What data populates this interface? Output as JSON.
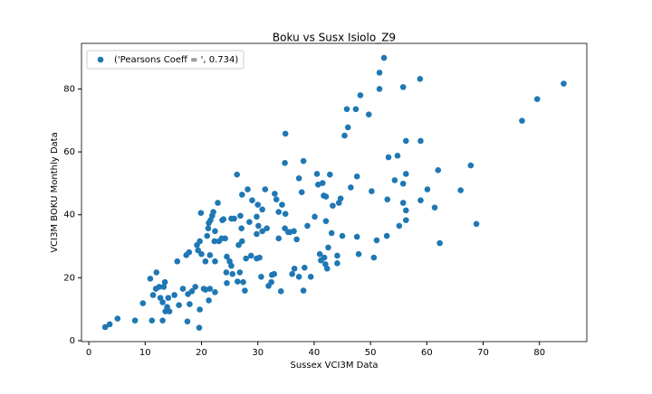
{
  "chart_data": {
    "type": "scatter",
    "title": "Boku vs Susx Isiolo_Z9",
    "x_label": "Sussex VCI3M Data",
    "y_label": "VCI3M BOKU Monthly Data",
    "xlim": [
      -1.3,
      88.4
    ],
    "ylim": [
      -0.3,
      94.5
    ],
    "xticks": [
      0,
      10,
      20,
      30,
      40,
      50,
      60,
      70,
      80
    ],
    "yticks": [
      0,
      20,
      40,
      60,
      80
    ],
    "legend": "upper left",
    "x": [
      2.9,
      3.7,
      5.1,
      8.2,
      9.6,
      10.9,
      11.2,
      11.4,
      12.0,
      11.9,
      12.5,
      12.7,
      13.1,
      13.1,
      13.3,
      13.5,
      13.6,
      13.9,
      14.1,
      14.3,
      15.2,
      15.7,
      16.0,
      16.7,
      17.3,
      17.5,
      17.6,
      17.8,
      17.9,
      18.3,
      18.9,
      19.2,
      19.4,
      19.6,
      19.7,
      19.7,
      19.9,
      20.0,
      20.4,
      20.7,
      20.7,
      21.0,
      21.2,
      21.3,
      21.3,
      21.5,
      21.5,
      21.6,
      21.9,
      22.1,
      22.3,
      22.4,
      22.4,
      22.4,
      22.9,
      23.1,
      23.6,
      23.7,
      23.9,
      24.2,
      24.4,
      24.5,
      24.5,
      25.0,
      25.3,
      25.3,
      25.5,
      25.8,
      26.3,
      26.4,
      26.6,
      26.8,
      26.9,
      27.1,
      27.2,
      27.2,
      27.4,
      27.7,
      27.9,
      28.2,
      28.5,
      28.8,
      29.0,
      29.8,
      29.8,
      29.8,
      30.0,
      30.1,
      30.3,
      30.6,
      30.8,
      30.8,
      31.3,
      31.6,
      31.9,
      32.4,
      32.5,
      32.9,
      33.0,
      33.3,
      33.7,
      33.7,
      34.1,
      34.3,
      34.8,
      34.8,
      34.9,
      34.9,
      35.4,
      35.7,
      36.1,
      36.4,
      36.5,
      36.9,
      37.3,
      37.3,
      37.8,
      38.1,
      38.1,
      38.3,
      38.8,
      39.4,
      40.1,
      40.5,
      40.7,
      41.0,
      41.2,
      41.5,
      41.7,
      41.8,
      42.0,
      42.1,
      42.1,
      42.3,
      42.5,
      42.8,
      43.1,
      43.3,
      44.1,
      44.1,
      44.4,
      44.7,
      45.0,
      45.4,
      45.8,
      46.0,
      46.5,
      47.4,
      47.6,
      47.6,
      47.9,
      48.2,
      49.7,
      50.2,
      50.6,
      51.1,
      51.6,
      51.6,
      52.4,
      52.9,
      53.0,
      53.2,
      54.3,
      54.8,
      55.1,
      55.8,
      55.8,
      55.8,
      56.3,
      56.3,
      56.3,
      56.3,
      58.8,
      58.9,
      58.9,
      60.1,
      61.4,
      62.0,
      62.3,
      66.0,
      67.8,
      68.8,
      76.9,
      79.6,
      84.3
    ],
    "series": [
      {
        "name": "('Pearsons Coeff = ', 0.734)",
        "color": "#1f77b4",
        "values": [
          4.3,
          5.2,
          7.0,
          6.4,
          11.9,
          19.7,
          6.4,
          14.5,
          21.7,
          16.5,
          17.1,
          13.6,
          12.2,
          6.4,
          17.1,
          18.6,
          9.3,
          10.7,
          13.6,
          9.3,
          14.5,
          25.2,
          11.3,
          16.5,
          27.2,
          6.1,
          14.8,
          28.1,
          11.6,
          15.7,
          17.1,
          30.4,
          28.7,
          4.1,
          9.9,
          31.6,
          40.6,
          27.5,
          16.5,
          16.2,
          25.2,
          33.3,
          35.7,
          37.4,
          12.8,
          16.5,
          27.2,
          38.3,
          39.7,
          40.9,
          31.6,
          15.4,
          34.8,
          25.2,
          43.8,
          31.6,
          32.5,
          38.3,
          38.6,
          32.5,
          21.7,
          18.3,
          26.7,
          25.2,
          23.8,
          38.8,
          21.2,
          38.8,
          52.8,
          18.8,
          30.4,
          21.7,
          39.7,
          35.7,
          31.6,
          46.4,
          18.6,
          15.9,
          26.1,
          48.1,
          37.7,
          27.0,
          44.6,
          26.1,
          39.4,
          33.9,
          43.2,
          36.5,
          26.4,
          20.3,
          34.8,
          41.7,
          48.1,
          35.7,
          17.4,
          18.6,
          20.9,
          21.2,
          46.7,
          44.9,
          32.5,
          40.9,
          15.7,
          43.2,
          56.5,
          35.7,
          65.8,
          40.3,
          34.5,
          34.5,
          21.2,
          34.8,
          22.9,
          32.2,
          51.6,
          20.3,
          47.2,
          57.1,
          15.9,
          23.2,
          36.5,
          20.3,
          39.4,
          53.0,
          49.6,
          27.5,
          25.5,
          50.1,
          46.1,
          26.4,
          24.3,
          38.0,
          45.8,
          22.9,
          29.6,
          52.8,
          34.2,
          42.9,
          27.0,
          24.6,
          43.8,
          45.2,
          33.3,
          65.2,
          73.6,
          67.8,
          48.7,
          73.6,
          52.2,
          33.0,
          27.5,
          78.0,
          71.9,
          47.5,
          26.4,
          31.9,
          80.0,
          85.2,
          89.9,
          33.3,
          44.9,
          58.3,
          51.0,
          58.8,
          36.5,
          80.6,
          49.9,
          43.8,
          53.0,
          63.5,
          41.4,
          38.3,
          83.2,
          63.5,
          44.6,
          48.1,
          42.3,
          54.2,
          31.0,
          47.8,
          55.7,
          37.1,
          69.9,
          76.8,
          81.7
        ]
      }
    ]
  }
}
